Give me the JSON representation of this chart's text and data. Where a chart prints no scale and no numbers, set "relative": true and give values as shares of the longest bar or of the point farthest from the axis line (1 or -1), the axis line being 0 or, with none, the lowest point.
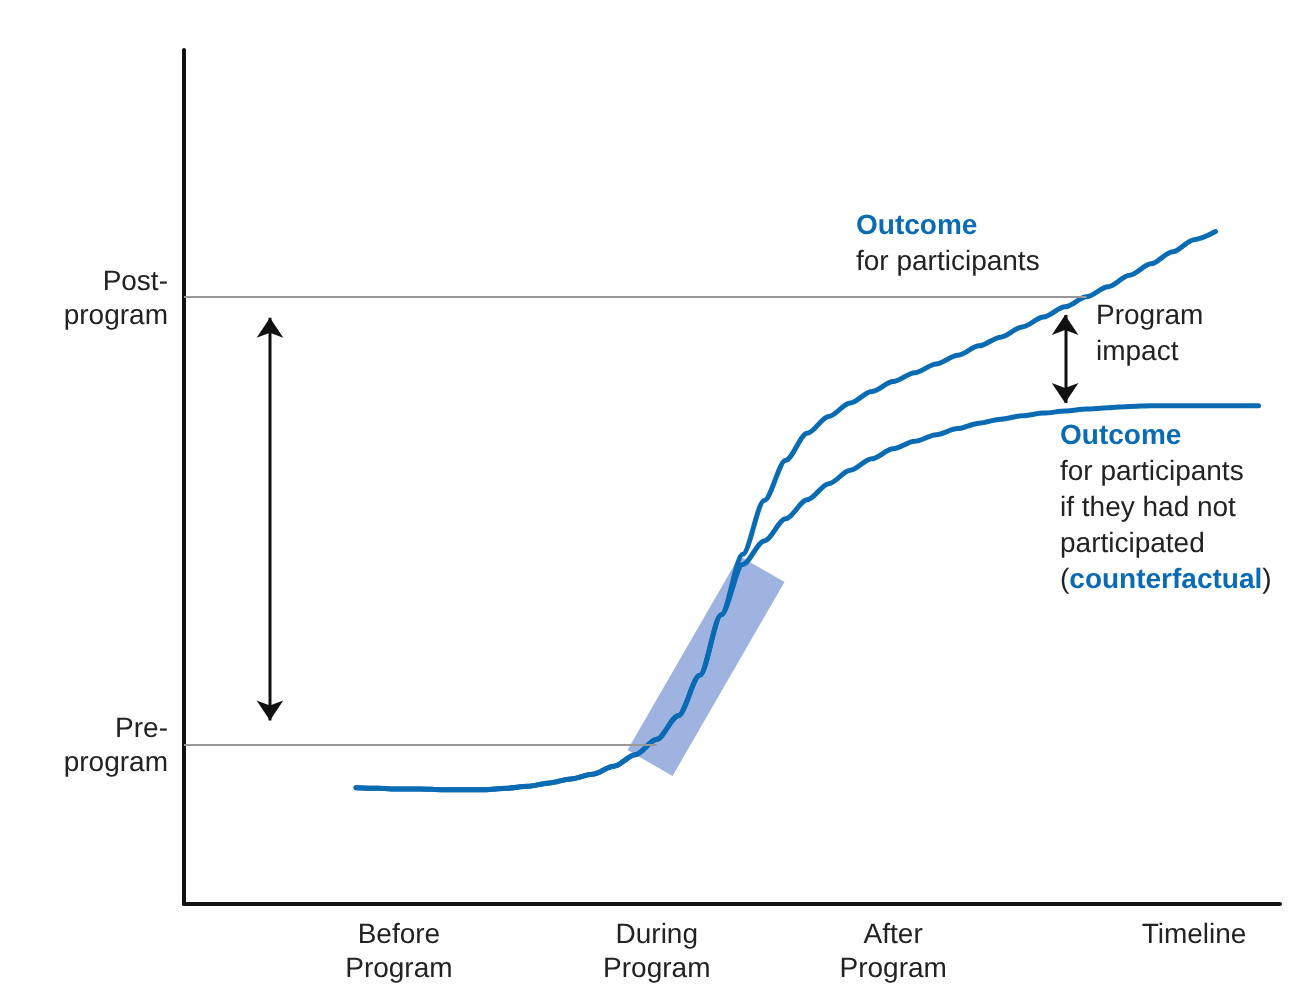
{
  "chart_data": {
    "type": "line",
    "relative": true,
    "categories": [
      null,
      null,
      null,
      null,
      null,
      null,
      null,
      null,
      null,
      null,
      "Before\nProgram",
      null,
      null,
      null,
      null,
      null,
      null,
      null,
      null,
      null,
      null,
      null,
      "During\nProgram",
      null,
      null,
      null,
      null,
      null,
      null,
      null,
      null,
      null,
      null,
      "After\nProgram",
      null,
      null,
      null,
      null,
      null,
      null,
      null,
      null,
      null,
      null,
      null,
      null,
      null,
      "Timeline",
      null,
      null,
      null,
      null
    ],
    "series": [
      {
        "color": "#0a6bb5",
        "values": [
          null,
          null,
          null,
          null,
          null,
          null,
          null,
          null,
          0.173,
          0.172,
          0.171,
          0.171,
          0.17,
          0.17,
          0.17,
          0.172,
          0.175,
          0.18,
          0.186,
          0.193,
          0.205,
          0.222,
          0.245,
          0.28,
          0.34,
          0.43,
          0.52,
          0.6,
          0.66,
          0.7,
          0.725,
          0.745,
          0.762,
          0.777,
          0.79,
          0.803,
          0.816,
          0.83,
          0.843,
          0.858,
          0.873,
          0.888,
          0.903,
          0.918,
          0.935,
          0.952,
          0.97,
          0.988,
          1,
          null,
          null,
          null
        ]
      },
      {
        "color": "#0a6bb5",
        "values": [
          null,
          null,
          null,
          null,
          null,
          null,
          null,
          null,
          0.173,
          0.172,
          0.171,
          0.171,
          0.17,
          0.17,
          0.17,
          0.172,
          0.175,
          0.18,
          0.186,
          0.193,
          0.205,
          0.222,
          0.245,
          0.28,
          0.34,
          0.43,
          0.505,
          0.54,
          0.573,
          0.601,
          0.625,
          0.645,
          0.662,
          0.677,
          0.688,
          0.698,
          0.707,
          0.715,
          0.721,
          0.726,
          0.73,
          0.733,
          0.736,
          0.738,
          0.74,
          0.741,
          0.741,
          0.741,
          0.741,
          0.741,
          0.741,
          null
        ]
      }
    ],
    "ref_lines": [
      {
        "axis": "y",
        "value": 0.902,
        "label": "Post-\nprogram",
        "color": "#999999"
      },
      {
        "axis": "y",
        "value": 0.238,
        "label": "Pre-\nprogram",
        "color": "#999999"
      }
    ],
    "annotations": [
      "Outcome\nfor participants",
      "Program\nimpact",
      "Outcome\nfor participants\nif they had not\nparticipated\n(counterfactual)"
    ],
    "grid": false,
    "marker": "none",
    "line_style": "solid"
  }
}
